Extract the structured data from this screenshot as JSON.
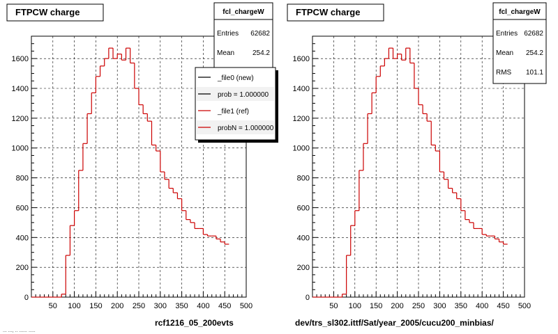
{
  "chart_data": [
    {
      "type": "histogram",
      "title": "FTPCW charge",
      "xlabel": "rcf1216_05_200evts",
      "ylabel": "",
      "xlim": [
        0,
        500
      ],
      "ylim": [
        0,
        1750
      ],
      "grid": true,
      "xticks": [
        "50",
        "100",
        "150",
        "200",
        "250",
        "300",
        "350",
        "400",
        "450",
        "500"
      ],
      "yticks": [
        "0",
        "200",
        "400",
        "600",
        "800",
        "1000",
        "1200",
        "1400",
        "1600"
      ],
      "bin_width": 10,
      "stats": {
        "name": "fcl_chargeW",
        "rows": [
          {
            "label": "Entries",
            "value": "62682"
          },
          {
            "label": "Mean",
            "value": "254.2"
          }
        ]
      },
      "legend": {
        "position": "top-right",
        "entries": [
          {
            "label": "_file0 (new)",
            "color": "#000000"
          },
          {
            "label": "prob = 1.000000",
            "color": "#000000"
          },
          {
            "label": "_file1 (ref)",
            "color": "#cc0000"
          },
          {
            "label": "probN = 1.000000",
            "color": "#cc0000"
          }
        ]
      },
      "series": [
        {
          "color": "#cc0000",
          "values": [
            0,
            0,
            0,
            0,
            0,
            0,
            0,
            20,
            280,
            480,
            580,
            850,
            1030,
            1230,
            1370,
            1480,
            1550,
            1600,
            1670,
            1600,
            1630,
            1590,
            1670,
            1570,
            1400,
            1290,
            1230,
            1180,
            1020,
            980,
            840,
            790,
            730,
            700,
            660,
            580,
            520,
            500,
            460,
            460,
            420,
            410,
            410,
            390,
            370,
            355
          ]
        }
      ]
    },
    {
      "type": "histogram",
      "title": "FTPCW charge",
      "xlabel": "dev/trs_sl302.ittf/Sat/year_2005/cucu200_minbias/",
      "ylabel": "",
      "xlim": [
        0,
        500
      ],
      "ylim": [
        0,
        1750
      ],
      "grid": true,
      "xticks": [
        "50",
        "100",
        "150",
        "200",
        "250",
        "300",
        "350",
        "400",
        "450",
        "500"
      ],
      "yticks": [
        "0",
        "200",
        "400",
        "600",
        "800",
        "1000",
        "1200",
        "1400",
        "1600"
      ],
      "bin_width": 10,
      "stats": {
        "name": "fcl_chargeW",
        "rows": [
          {
            "label": "Entries",
            "value": "62682"
          },
          {
            "label": "Mean",
            "value": "254.2"
          },
          {
            "label": "RMS",
            "value": "101.1"
          }
        ]
      },
      "series": [
        {
          "color": "#cc0000",
          "values": [
            0,
            0,
            0,
            0,
            0,
            0,
            0,
            20,
            280,
            480,
            580,
            850,
            1030,
            1230,
            1370,
            1480,
            1550,
            1600,
            1670,
            1600,
            1630,
            1590,
            1670,
            1570,
            1400,
            1290,
            1230,
            1180,
            1020,
            980,
            840,
            790,
            730,
            700,
            660,
            580,
            520,
            500,
            460,
            460,
            420,
            410,
            410,
            390,
            370,
            355
          ]
        }
      ]
    }
  ],
  "footer_text": "... ..., .. ...... ....."
}
